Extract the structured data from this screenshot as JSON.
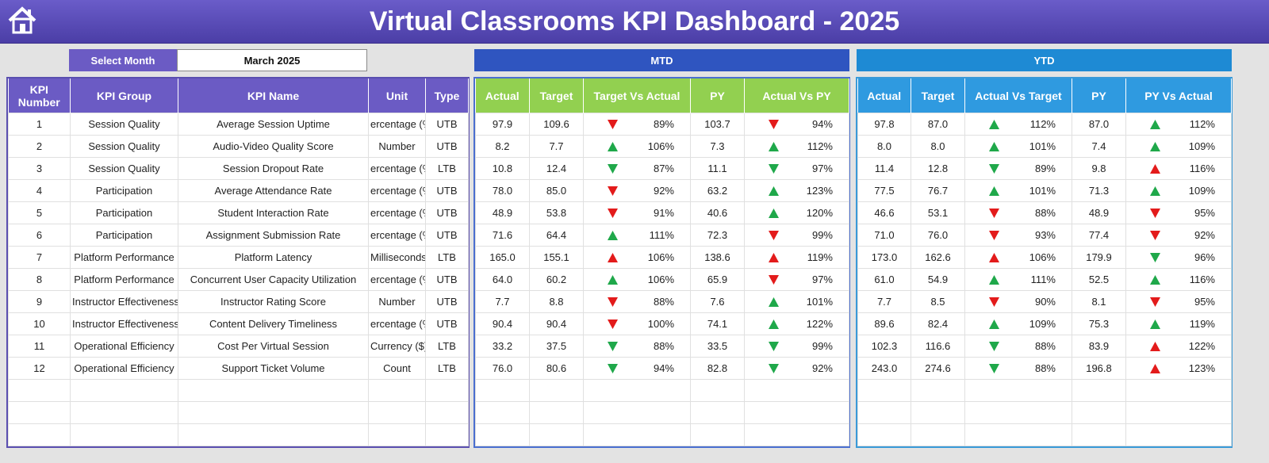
{
  "header": {
    "title": "Virtual Classrooms KPI Dashboard - 2025"
  },
  "month_selector": {
    "label": "Select Month",
    "value": "March 2025"
  },
  "sections": {
    "mtd": "MTD",
    "ytd": "YTD"
  },
  "kpi_table": {
    "columns": [
      "KPI Number",
      "KPI Group",
      "KPI Name",
      "Unit",
      "Type"
    ],
    "rows": [
      [
        "1",
        "Session Quality",
        "Average Session Uptime",
        "ercentage (%",
        "UTB"
      ],
      [
        "2",
        "Session Quality",
        "Audio-Video Quality Score",
        "Number",
        "UTB"
      ],
      [
        "3",
        "Session Quality",
        "Session Dropout Rate",
        "ercentage (%",
        "LTB"
      ],
      [
        "4",
        "Participation",
        "Average Attendance Rate",
        "ercentage (%",
        "UTB"
      ],
      [
        "5",
        "Participation",
        "Student Interaction Rate",
        "ercentage (%",
        "UTB"
      ],
      [
        "6",
        "Participation",
        "Assignment Submission Rate",
        "ercentage (%",
        "UTB"
      ],
      [
        "7",
        "Platform Performance",
        "Platform Latency",
        "Milliseconds",
        "LTB"
      ],
      [
        "8",
        "Platform Performance",
        "Concurrent User Capacity Utilization",
        "ercentage (%",
        "UTB"
      ],
      [
        "9",
        "Instructor Effectiveness",
        "Instructor Rating Score",
        "Number",
        "UTB"
      ],
      [
        "10",
        "Instructor Effectiveness",
        "Content Delivery Timeliness",
        "ercentage (%",
        "UTB"
      ],
      [
        "11",
        "Operational Efficiency",
        "Cost Per Virtual Session",
        "Currency ($)",
        "LTB"
      ],
      [
        "12",
        "Operational Efficiency",
        "Support Ticket Volume",
        "Count",
        "LTB"
      ]
    ]
  },
  "mtd_table": {
    "columns": [
      "Actual",
      "Target",
      "Target Vs Actual",
      "PY",
      "Actual Vs PY"
    ],
    "rows": [
      [
        "97.9",
        "109.6",
        {
          "arrow": "down",
          "color": "#e31b1b",
          "value": "89%"
        },
        "103.7",
        {
          "arrow": "down",
          "color": "#e31b1b",
          "value": "94%"
        }
      ],
      [
        "8.2",
        "7.7",
        {
          "arrow": "up",
          "color": "#1fa84a",
          "value": "106%"
        },
        "7.3",
        {
          "arrow": "up",
          "color": "#1fa84a",
          "value": "112%"
        }
      ],
      [
        "10.8",
        "12.4",
        {
          "arrow": "down",
          "color": "#1fa84a",
          "value": "87%"
        },
        "11.1",
        {
          "arrow": "down",
          "color": "#1fa84a",
          "value": "97%"
        }
      ],
      [
        "78.0",
        "85.0",
        {
          "arrow": "down",
          "color": "#e31b1b",
          "value": "92%"
        },
        "63.2",
        {
          "arrow": "up",
          "color": "#1fa84a",
          "value": "123%"
        }
      ],
      [
        "48.9",
        "53.8",
        {
          "arrow": "down",
          "color": "#e31b1b",
          "value": "91%"
        },
        "40.6",
        {
          "arrow": "up",
          "color": "#1fa84a",
          "value": "120%"
        }
      ],
      [
        "71.6",
        "64.4",
        {
          "arrow": "up",
          "color": "#1fa84a",
          "value": "111%"
        },
        "72.3",
        {
          "arrow": "down",
          "color": "#e31b1b",
          "value": "99%"
        }
      ],
      [
        "165.0",
        "155.1",
        {
          "arrow": "up",
          "color": "#e31b1b",
          "value": "106%"
        },
        "138.6",
        {
          "arrow": "up",
          "color": "#e31b1b",
          "value": "119%"
        }
      ],
      [
        "64.0",
        "60.2",
        {
          "arrow": "up",
          "color": "#1fa84a",
          "value": "106%"
        },
        "65.9",
        {
          "arrow": "down",
          "color": "#e31b1b",
          "value": "97%"
        }
      ],
      [
        "7.7",
        "8.8",
        {
          "arrow": "down",
          "color": "#e31b1b",
          "value": "88%"
        },
        "7.6",
        {
          "arrow": "up",
          "color": "#1fa84a",
          "value": "101%"
        }
      ],
      [
        "90.4",
        "90.4",
        {
          "arrow": "down",
          "color": "#e31b1b",
          "value": "100%"
        },
        "74.1",
        {
          "arrow": "up",
          "color": "#1fa84a",
          "value": "122%"
        }
      ],
      [
        "33.2",
        "37.5",
        {
          "arrow": "down",
          "color": "#1fa84a",
          "value": "88%"
        },
        "33.5",
        {
          "arrow": "down",
          "color": "#1fa84a",
          "value": "99%"
        }
      ],
      [
        "76.0",
        "80.6",
        {
          "arrow": "down",
          "color": "#1fa84a",
          "value": "94%"
        },
        "82.8",
        {
          "arrow": "down",
          "color": "#1fa84a",
          "value": "92%"
        }
      ]
    ]
  },
  "ytd_table": {
    "columns": [
      "Actual",
      "Target",
      "Actual Vs Target",
      "PY",
      "PY Vs Actual"
    ],
    "rows": [
      [
        "97.8",
        "87.0",
        {
          "arrow": "up",
          "color": "#1fa84a",
          "value": "112%"
        },
        "87.0",
        {
          "arrow": "up",
          "color": "#1fa84a",
          "value": "112%"
        }
      ],
      [
        "8.0",
        "8.0",
        {
          "arrow": "up",
          "color": "#1fa84a",
          "value": "101%"
        },
        "7.4",
        {
          "arrow": "up",
          "color": "#1fa84a",
          "value": "109%"
        }
      ],
      [
        "11.4",
        "12.8",
        {
          "arrow": "down",
          "color": "#1fa84a",
          "value": "89%"
        },
        "9.8",
        {
          "arrow": "up",
          "color": "#e31b1b",
          "value": "116%"
        }
      ],
      [
        "77.5",
        "76.7",
        {
          "arrow": "up",
          "color": "#1fa84a",
          "value": "101%"
        },
        "71.3",
        {
          "arrow": "up",
          "color": "#1fa84a",
          "value": "109%"
        }
      ],
      [
        "46.6",
        "53.1",
        {
          "arrow": "down",
          "color": "#e31b1b",
          "value": "88%"
        },
        "48.9",
        {
          "arrow": "down",
          "color": "#e31b1b",
          "value": "95%"
        }
      ],
      [
        "71.0",
        "76.0",
        {
          "arrow": "down",
          "color": "#e31b1b",
          "value": "93%"
        },
        "77.4",
        {
          "arrow": "down",
          "color": "#e31b1b",
          "value": "92%"
        }
      ],
      [
        "173.0",
        "162.6",
        {
          "arrow": "up",
          "color": "#e31b1b",
          "value": "106%"
        },
        "179.9",
        {
          "arrow": "down",
          "color": "#1fa84a",
          "value": "96%"
        }
      ],
      [
        "61.0",
        "54.9",
        {
          "arrow": "up",
          "color": "#1fa84a",
          "value": "111%"
        },
        "52.5",
        {
          "arrow": "up",
          "color": "#1fa84a",
          "value": "116%"
        }
      ],
      [
        "7.7",
        "8.5",
        {
          "arrow": "down",
          "color": "#e31b1b",
          "value": "90%"
        },
        "8.1",
        {
          "arrow": "down",
          "color": "#e31b1b",
          "value": "95%"
        }
      ],
      [
        "89.6",
        "82.4",
        {
          "arrow": "up",
          "color": "#1fa84a",
          "value": "109%"
        },
        "75.3",
        {
          "arrow": "up",
          "color": "#1fa84a",
          "value": "119%"
        }
      ],
      [
        "102.3",
        "116.6",
        {
          "arrow": "down",
          "color": "#1fa84a",
          "value": "88%"
        },
        "83.9",
        {
          "arrow": "up",
          "color": "#e31b1b",
          "value": "122%"
        }
      ],
      [
        "243.0",
        "274.6",
        {
          "arrow": "down",
          "color": "#1fa84a",
          "value": "88%"
        },
        "196.8",
        {
          "arrow": "up",
          "color": "#e31b1b",
          "value": "123%"
        }
      ]
    ]
  }
}
